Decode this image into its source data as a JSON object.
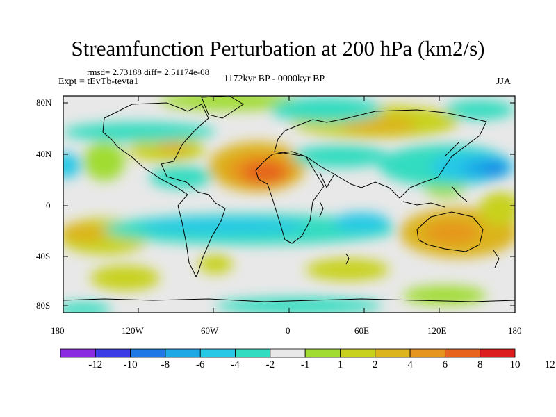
{
  "header": {
    "title": "Streamfunction Perturbation at 200 hPa (km2/s)",
    "stats": "rmsd= 2.73188  diff= 2.51174e-08",
    "experiment": "Expt = tEvTb-tevta1",
    "period": "1172kyr BP - 0000kyr BP",
    "season": "JJA"
  },
  "axes": {
    "lat_ticks": [
      "80N",
      "40N",
      "0",
      "40S",
      "80S"
    ],
    "lon_ticks": [
      "180",
      "120W",
      "60W",
      "0",
      "60E",
      "120E",
      "180"
    ]
  },
  "colorbar": {
    "colors": [
      "#8a2be2",
      "#3c3ce6",
      "#1e78e6",
      "#1ea8e6",
      "#28c8e6",
      "#32dcc0",
      "#e8e8e8",
      "#a0dc32",
      "#c8d21e",
      "#dcb41e",
      "#e6961e",
      "#e6641e",
      "#dc1e1e"
    ],
    "labels": [
      "-12",
      "-10",
      "-8",
      "-6",
      "-4",
      "-2",
      "-1",
      "1",
      "2",
      "4",
      "6",
      "8",
      "10",
      "12"
    ]
  }
}
